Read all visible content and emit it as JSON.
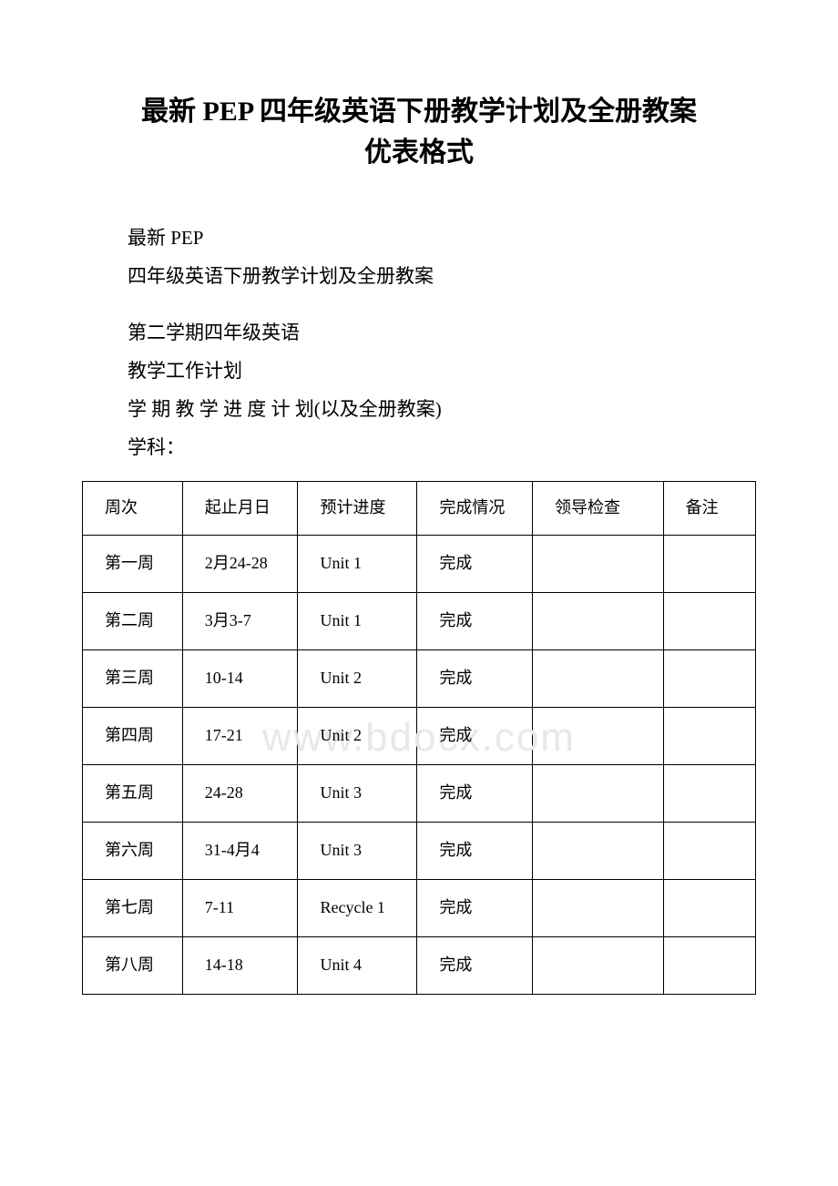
{
  "title_line1": "最新 PEP 四年级英语下册教学计划及全册教案",
  "title_line2": "优表格式",
  "paragraphs": [
    "最新 PEP",
    "四年级英语下册教学计划及全册教案",
    "",
    "第二学期四年级英语",
    "教学工作计划",
    "学 期 教 学 进 度 计 划(以及全册教案)",
    "学科："
  ],
  "watermark": "www.bdocx.com",
  "table": {
    "columns": [
      "周次",
      "起止月日",
      "预计进度",
      "完成情况",
      "领导检查",
      "备注"
    ],
    "rows": [
      [
        "第一周",
        "2月24-28",
        "Unit 1",
        "完成",
        "",
        ""
      ],
      [
        "第二周",
        "3月3-7",
        "Unit 1",
        "完成",
        "",
        ""
      ],
      [
        "第三周",
        "10-14",
        "Unit 2",
        "完成",
        "",
        ""
      ],
      [
        "第四周",
        "17-21",
        "Unit 2",
        "完成",
        "",
        ""
      ],
      [
        "第五周",
        "24-28",
        "Unit 3",
        "完成",
        "",
        ""
      ],
      [
        "第六周",
        "31-4月4",
        "Unit 3",
        "完成",
        "",
        ""
      ],
      [
        "第七周",
        "7-11",
        "Recycle 1",
        "完成",
        "",
        ""
      ],
      [
        "第八周",
        "14-18",
        "Unit 4",
        "完成",
        "",
        ""
      ]
    ]
  },
  "style": {
    "page_bg": "#ffffff",
    "text_color": "#000000",
    "border_color": "#000000",
    "watermark_color": "#e8e8e8",
    "title_fontsize": 30,
    "body_fontsize": 21,
    "table_fontsize": 18,
    "col_widths_pct": [
      13,
      15,
      15.5,
      15,
      17,
      12
    ]
  }
}
